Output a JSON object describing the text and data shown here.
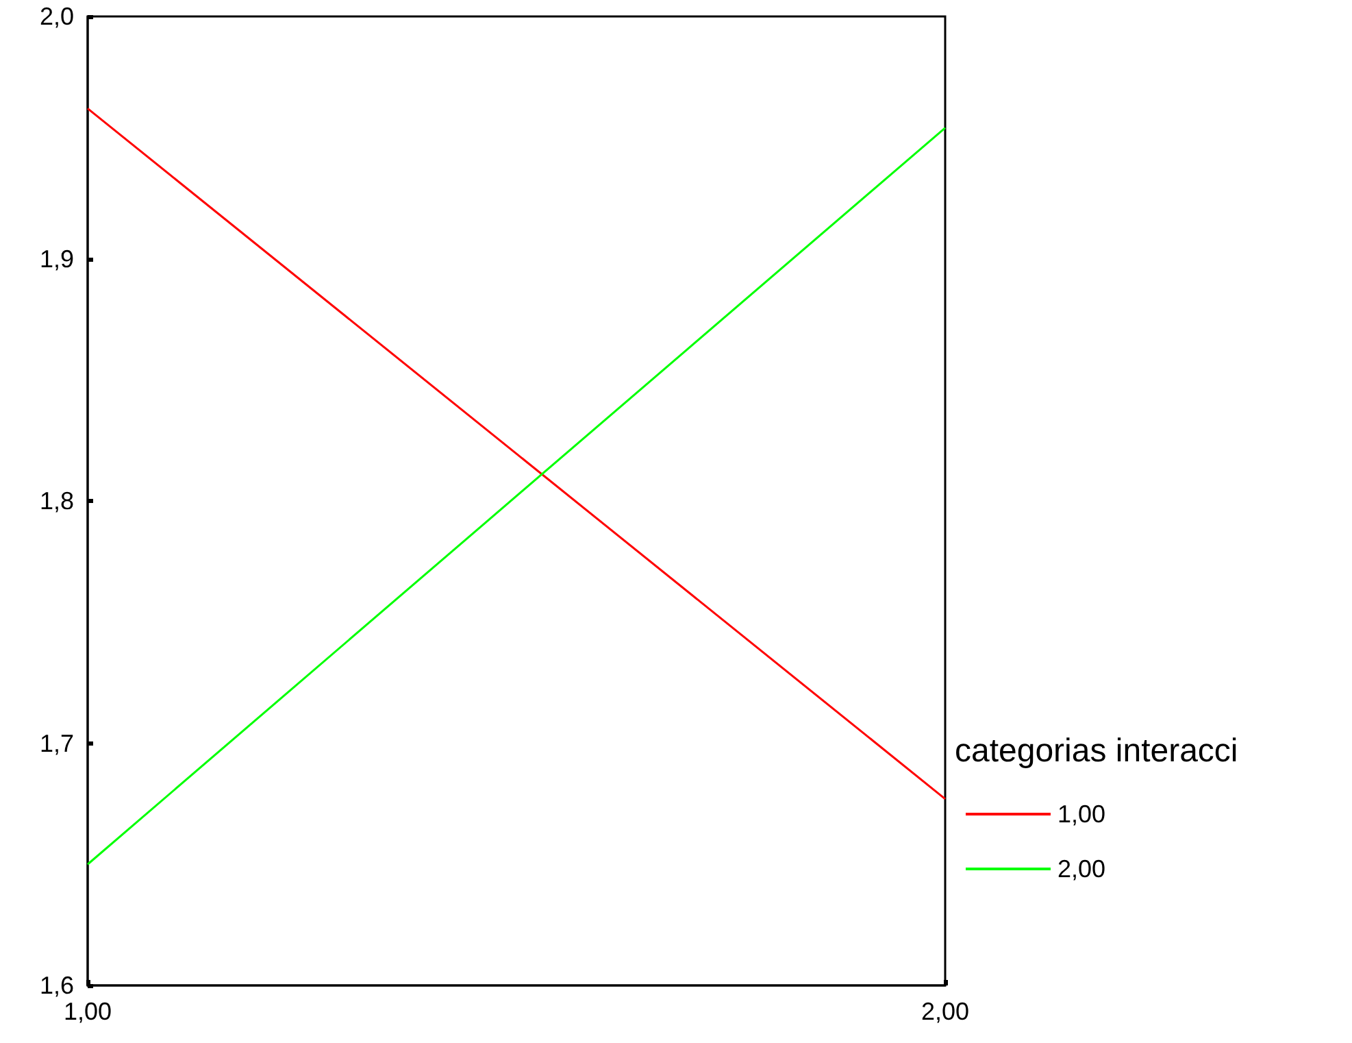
{
  "chart_data": {
    "type": "line",
    "legend_title": "categorias interacci",
    "legend": "right",
    "grid": false,
    "x": [
      1,
      2
    ],
    "xlim": [
      1,
      2
    ],
    "xticks": [
      {
        "value": 1,
        "label": "1,00"
      },
      {
        "value": 2,
        "label": "2,00"
      }
    ],
    "ylim": [
      1.6,
      2.0
    ],
    "yticks": [
      {
        "value": 1.6,
        "label": "1,6"
      },
      {
        "value": 1.7,
        "label": "1,7"
      },
      {
        "value": 1.8,
        "label": "1,8"
      },
      {
        "value": 1.9,
        "label": "1,9"
      },
      {
        "value": 2.0,
        "label": "2,0"
      }
    ],
    "series": [
      {
        "name": "1,00",
        "color": "#ff0000",
        "values": [
          1.962,
          1.677
        ]
      },
      {
        "name": "2,00",
        "color": "#00ff00",
        "values": [
          1.65,
          1.954
        ]
      }
    ]
  }
}
